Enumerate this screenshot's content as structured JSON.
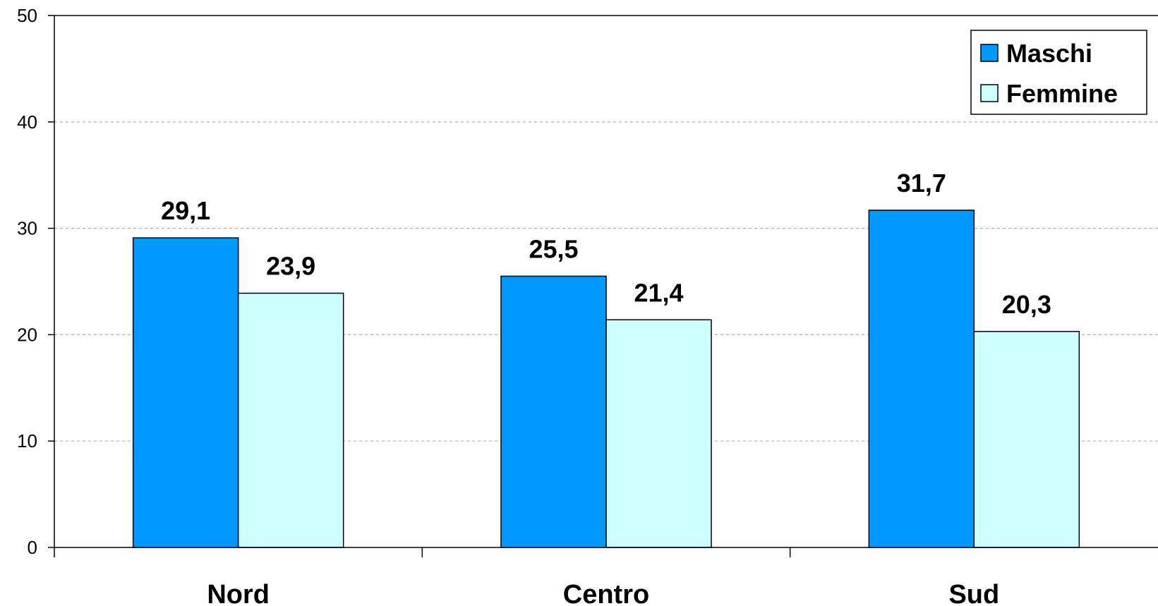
{
  "chart_data": {
    "type": "bar",
    "title": "",
    "xlabel": "",
    "ylabel": "",
    "categories": [
      "Nord",
      "Centro",
      "Sud"
    ],
    "series": [
      {
        "name": "Maschi",
        "values": [
          29.1,
          25.5,
          31.7
        ],
        "labels": [
          "29,1",
          "25,5",
          "31,7"
        ],
        "color": "#0099ff"
      },
      {
        "name": "Femmine",
        "values": [
          23.9,
          21.4,
          20.3
        ],
        "labels": [
          "23,9",
          "21,4",
          "20,3"
        ],
        "color": "#ccffff"
      }
    ],
    "ylim": [
      0,
      50
    ],
    "yticks": [
      0,
      10,
      20,
      30,
      40,
      50
    ],
    "grid": true,
    "legend_position": "top-right"
  }
}
